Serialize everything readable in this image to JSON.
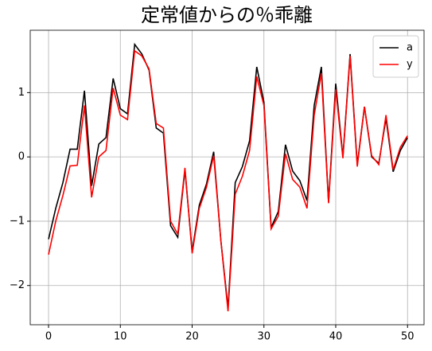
{
  "chart_data": {
    "type": "line",
    "title": "定常値からの％乖離",
    "x": [
      0,
      1,
      2,
      3,
      4,
      5,
      6,
      7,
      8,
      9,
      10,
      11,
      12,
      13,
      14,
      15,
      16,
      17,
      18,
      19,
      20,
      21,
      22,
      23,
      24,
      25,
      26,
      27,
      28,
      29,
      30,
      31,
      32,
      33,
      34,
      35,
      36,
      37,
      38,
      39,
      40,
      41,
      42,
      43,
      44,
      45,
      46,
      47,
      48,
      49,
      50
    ],
    "series": [
      {
        "name": "a",
        "color": "#000000",
        "values": [
          -1.28,
          -0.8,
          -0.4,
          0.12,
          0.12,
          1.03,
          -0.45,
          0.2,
          0.3,
          1.22,
          0.75,
          0.67,
          1.75,
          1.6,
          1.35,
          0.45,
          0.37,
          -1.07,
          -1.25,
          -0.2,
          -1.47,
          -0.75,
          -0.42,
          0.08,
          -1.3,
          -2.35,
          -0.4,
          -0.15,
          0.25,
          1.4,
          0.85,
          -1.1,
          -0.85,
          0.19,
          -0.22,
          -0.37,
          -0.68,
          0.8,
          1.4,
          -0.7,
          1.14,
          0.0,
          1.6,
          -0.12,
          0.78,
          0.0,
          -0.1,
          0.6,
          -0.23,
          0.1,
          0.3
        ]
      },
      {
        "name": "y",
        "color": "#ff0000",
        "values": [
          -1.52,
          -1.0,
          -0.6,
          -0.14,
          -0.13,
          0.8,
          -0.63,
          0.0,
          0.1,
          1.07,
          0.65,
          0.58,
          1.65,
          1.57,
          1.37,
          0.52,
          0.45,
          -1.0,
          -1.2,
          -0.17,
          -1.5,
          -0.8,
          -0.47,
          0.02,
          -1.3,
          -2.4,
          -0.58,
          -0.3,
          0.1,
          1.25,
          0.8,
          -1.12,
          -0.92,
          0.05,
          -0.35,
          -0.47,
          -0.8,
          0.65,
          1.3,
          -0.72,
          1.05,
          -0.02,
          1.57,
          -0.15,
          0.78,
          0.02,
          -0.12,
          0.65,
          -0.2,
          0.15,
          0.33
        ]
      }
    ],
    "xlim": [
      -2.55,
      52.3
    ],
    "xticks": [
      0,
      10,
      20,
      30,
      40,
      50
    ],
    "ylim": [
      -2.61,
      1.97
    ],
    "yticks": [
      {
        "value": -2,
        "label": "−2"
      },
      {
        "value": -1,
        "label": "−1"
      },
      0,
      1
    ],
    "grid": true,
    "legend": "upper right"
  }
}
